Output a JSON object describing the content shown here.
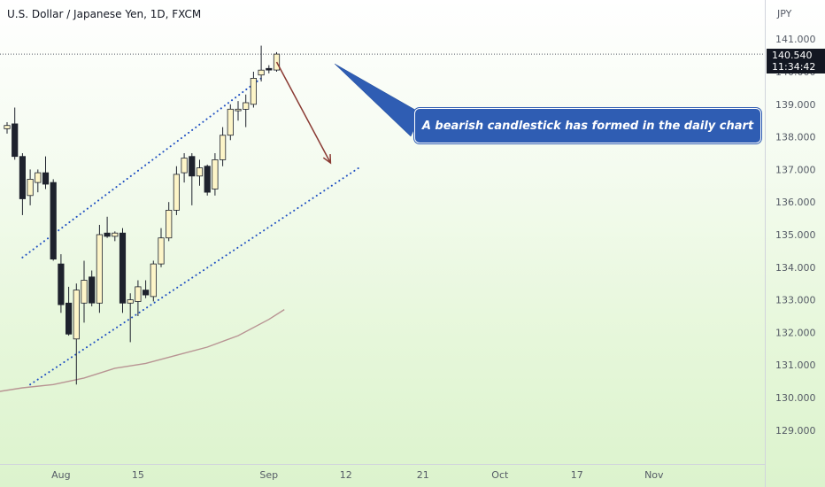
{
  "header": {
    "title": "U.S. Dollar / Japanese Yen, 1D, FXCM"
  },
  "price_axis": {
    "currency": "JPY",
    "current_price": "140.540",
    "countdown": "11:34:42"
  },
  "annotation": {
    "text": "A bearish candlestick has formed in the daily chart"
  },
  "colors": {
    "bull": "#fdf5c8",
    "bear": "#1e222d",
    "wick": "#1e222d",
    "channel": "#1f4fc2",
    "moving_average": "#b89493",
    "arrow": "#8a3a33",
    "callout": "#2f5db3"
  },
  "chart_data": {
    "type": "candlestick",
    "title": "U.S. Dollar / Japanese Yen, 1D, FXCM",
    "ylim": [
      128.4,
      142.2
    ],
    "y_ticks": [
      "129.000",
      "130.000",
      "131.000",
      "132.000",
      "133.000",
      "134.000",
      "135.000",
      "136.000",
      "137.000",
      "138.000",
      "139.000",
      "140.000",
      "141.000"
    ],
    "x_labels": [
      {
        "label": "Aug",
        "day": 7
      },
      {
        "label": "15",
        "day": 17
      },
      {
        "label": "Sep",
        "day": 34
      },
      {
        "label": "12",
        "day": 44
      },
      {
        "label": "21",
        "day": 54
      },
      {
        "label": "Oct",
        "day": 64
      },
      {
        "label": "17",
        "day": 74
      },
      {
        "label": "Nov",
        "day": 84
      }
    ],
    "candles": [
      {
        "o": 138.25,
        "h": 138.45,
        "l": 138.1,
        "c": 138.35
      },
      {
        "o": 138.4,
        "h": 138.9,
        "l": 137.3,
        "c": 137.4
      },
      {
        "o": 137.4,
        "h": 137.5,
        "l": 135.6,
        "c": 136.1
      },
      {
        "o": 136.2,
        "h": 137.0,
        "l": 135.9,
        "c": 136.7
      },
      {
        "o": 136.6,
        "h": 137.0,
        "l": 136.3,
        "c": 136.9
      },
      {
        "o": 136.9,
        "h": 137.4,
        "l": 136.4,
        "c": 136.55
      },
      {
        "o": 136.6,
        "h": 136.7,
        "l": 134.2,
        "c": 134.25
      },
      {
        "o": 134.1,
        "h": 134.4,
        "l": 132.6,
        "c": 132.85
      },
      {
        "o": 132.9,
        "h": 133.4,
        "l": 131.9,
        "c": 131.95
      },
      {
        "o": 131.8,
        "h": 133.5,
        "l": 130.4,
        "c": 133.3
      },
      {
        "o": 132.9,
        "h": 134.2,
        "l": 132.3,
        "c": 133.6
      },
      {
        "o": 133.7,
        "h": 133.9,
        "l": 132.8,
        "c": 132.9
      },
      {
        "o": 132.9,
        "h": 135.3,
        "l": 132.6,
        "c": 135.0
      },
      {
        "o": 135.05,
        "h": 135.55,
        "l": 134.9,
        "c": 134.95
      },
      {
        "o": 134.95,
        "h": 135.1,
        "l": 134.8,
        "c": 135.05
      },
      {
        "o": 135.05,
        "h": 135.2,
        "l": 132.6,
        "c": 132.9
      },
      {
        "o": 132.9,
        "h": 133.2,
        "l": 131.7,
        "c": 133.0
      },
      {
        "o": 132.95,
        "h": 133.6,
        "l": 132.5,
        "c": 133.4
      },
      {
        "o": 133.3,
        "h": 133.6,
        "l": 133.05,
        "c": 133.15
      },
      {
        "o": 133.1,
        "h": 134.2,
        "l": 132.95,
        "c": 134.1
      },
      {
        "o": 134.1,
        "h": 135.2,
        "l": 134.0,
        "c": 134.9
      },
      {
        "o": 134.9,
        "h": 136.0,
        "l": 134.8,
        "c": 135.75
      },
      {
        "o": 135.75,
        "h": 137.1,
        "l": 135.6,
        "c": 136.85
      },
      {
        "o": 136.9,
        "h": 137.5,
        "l": 136.6,
        "c": 137.35
      },
      {
        "o": 137.4,
        "h": 137.5,
        "l": 135.9,
        "c": 136.8
      },
      {
        "o": 136.8,
        "h": 137.3,
        "l": 136.5,
        "c": 137.05
      },
      {
        "o": 137.1,
        "h": 137.15,
        "l": 136.2,
        "c": 136.3
      },
      {
        "o": 136.4,
        "h": 137.5,
        "l": 136.2,
        "c": 137.3
      },
      {
        "o": 137.3,
        "h": 138.3,
        "l": 137.1,
        "c": 138.05
      },
      {
        "o": 138.05,
        "h": 139.0,
        "l": 137.9,
        "c": 138.85
      },
      {
        "o": 138.8,
        "h": 139.1,
        "l": 138.5,
        "c": 138.85
      },
      {
        "o": 138.85,
        "h": 139.3,
        "l": 138.3,
        "c": 139.05
      },
      {
        "o": 139.0,
        "h": 140.0,
        "l": 138.9,
        "c": 139.8
      },
      {
        "o": 139.9,
        "h": 140.8,
        "l": 139.7,
        "c": 140.05
      },
      {
        "o": 140.1,
        "h": 140.2,
        "l": 139.95,
        "c": 140.05
      },
      {
        "o": 140.05,
        "h": 140.6,
        "l": 140.0,
        "c": 140.54
      }
    ],
    "moving_average": [
      {
        "day": -10,
        "v": 129.7
      },
      {
        "day": -6,
        "v": 129.95
      },
      {
        "day": -2,
        "v": 130.15
      },
      {
        "day": 2,
        "v": 130.3
      },
      {
        "day": 6,
        "v": 130.4
      },
      {
        "day": 10,
        "v": 130.6
      },
      {
        "day": 14,
        "v": 130.9
      },
      {
        "day": 18,
        "v": 131.05
      },
      {
        "day": 22,
        "v": 131.3
      },
      {
        "day": 26,
        "v": 131.55
      },
      {
        "day": 30,
        "v": 131.9
      },
      {
        "day": 34,
        "v": 132.4
      },
      {
        "day": 36,
        "v": 132.7
      }
    ],
    "channel_upper": [
      {
        "day": 2,
        "v": 134.3
      },
      {
        "day": 33,
        "v": 139.8
      }
    ],
    "channel_lower": [
      {
        "day": 3,
        "v": 130.4
      },
      {
        "day": 46,
        "v": 137.1
      }
    ],
    "current_price_line": 140.54,
    "forecast_arrow": [
      {
        "day": 35,
        "v": 140.3
      },
      {
        "day": 42,
        "v": 137.2
      }
    ]
  }
}
